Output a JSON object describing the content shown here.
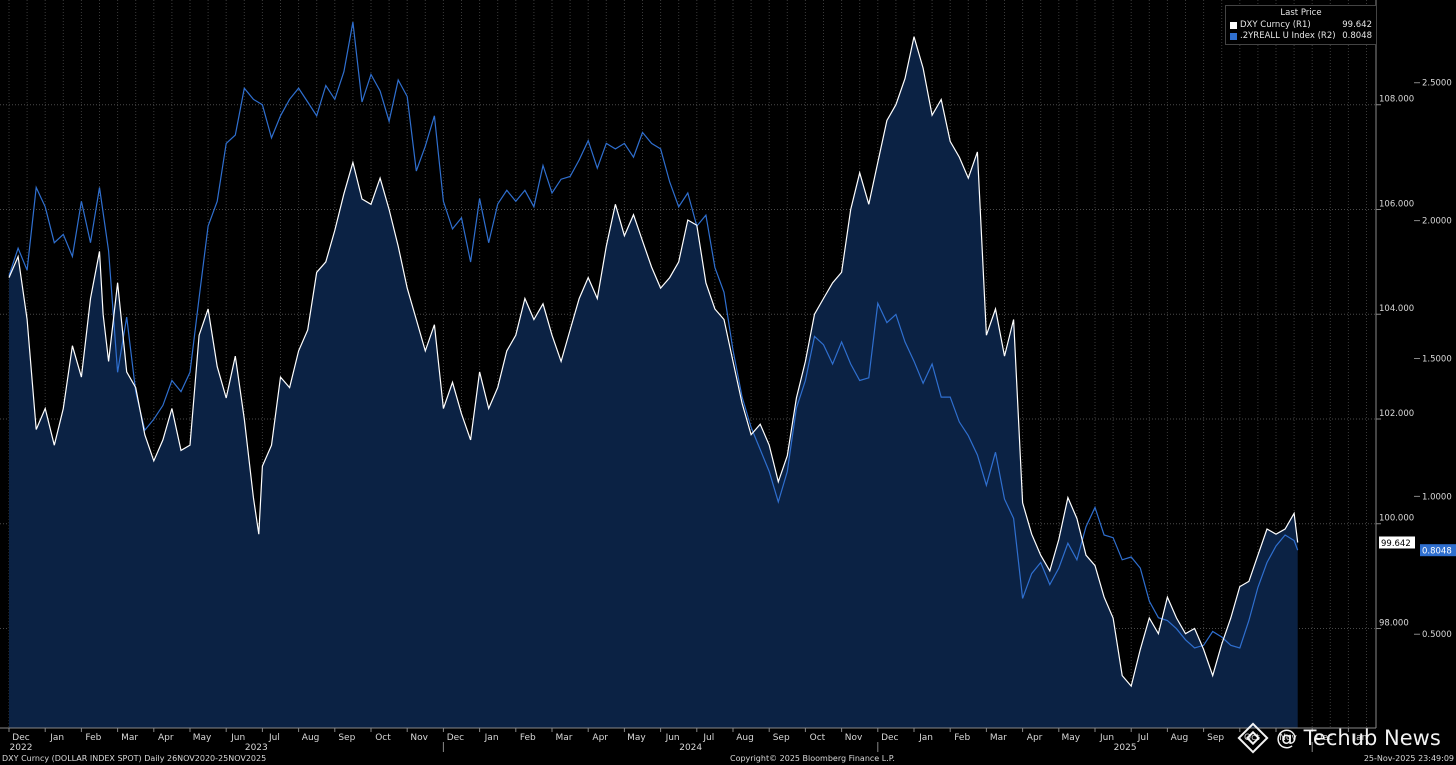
{
  "legend": {
    "title": "Last Price",
    "items": [
      {
        "name": "DXY Curncy  (R1)",
        "value": "99.642",
        "color": "#ffffff"
      },
      {
        "name": ".2YREALL U Index  (R2)",
        "value": "0.8048",
        "color": "#2f6fcf"
      }
    ]
  },
  "footer": {
    "left": "DXY Curncy (DOLLAR INDEX SPOT) Daily 26NOV2020-25NOV2025",
    "center": "Copyright© 2025 Bloomberg Finance L.P.",
    "right": "25-Nov-2025 23:49:09"
  },
  "watermark": "@ Techub News",
  "colors": {
    "background": "#000000",
    "area_fill": "#0b2244",
    "dxy_line": "#ffffff",
    "real_yield_line": "#2f6fcf",
    "grid": "#3a3a3a"
  },
  "chart_data": {
    "type": "line",
    "x_labels": [
      "Dec",
      "Jan",
      "Feb",
      "Mar",
      "Apr",
      "May",
      "Jun",
      "Jul",
      "Aug",
      "Sep",
      "Oct",
      "Nov",
      "Dec",
      "Jan",
      "Feb",
      "Mar",
      "Apr",
      "May",
      "Jun",
      "Jul",
      "Aug",
      "Sep",
      "Oct",
      "Nov",
      "Dec",
      "Jan",
      "Feb",
      "Mar",
      "Apr",
      "May",
      "Jun",
      "Jul",
      "Aug",
      "Sep",
      "Oct",
      "Nov",
      "Dec",
      "Jan"
    ],
    "year_labels": [
      {
        "label": "2022",
        "month_index": 0
      },
      {
        "label": "2023",
        "month_index": 6.5
      },
      {
        "label": "2024",
        "month_index": 18.5
      },
      {
        "label": "2025",
        "month_index": 30.5
      }
    ],
    "axis_r1": {
      "ticks": [
        "98.000",
        "100.000",
        "102.000",
        "104.000",
        "106.000",
        "108.000"
      ],
      "range": [
        96.1,
        110.0
      ]
    },
    "axis_r2": {
      "ticks": [
        "0.5000",
        "1.0000",
        "1.5000",
        "2.0000",
        "2.5000"
      ],
      "range": [
        0.16,
        2.8
      ]
    },
    "last_price_labels": {
      "r1": "99.642",
      "r2": "0.8048"
    },
    "series": [
      {
        "name": "DXY Curncy",
        "axis": "R1",
        "style": "area",
        "points": [
          [
            0.0,
            104.7
          ],
          [
            0.25,
            105.1
          ],
          [
            0.5,
            103.9
          ],
          [
            0.75,
            101.8
          ],
          [
            1.0,
            102.2
          ],
          [
            1.25,
            101.5
          ],
          [
            1.5,
            102.2
          ],
          [
            1.75,
            103.4
          ],
          [
            2.0,
            102.8
          ],
          [
            2.25,
            104.3
          ],
          [
            2.5,
            105.2
          ],
          [
            2.6,
            104.0
          ],
          [
            2.75,
            103.1
          ],
          [
            3.0,
            104.6
          ],
          [
            3.25,
            102.9
          ],
          [
            3.5,
            102.6
          ],
          [
            3.75,
            101.7
          ],
          [
            4.0,
            101.2
          ],
          [
            4.25,
            101.6
          ],
          [
            4.5,
            102.2
          ],
          [
            4.75,
            101.4
          ],
          [
            5.0,
            101.5
          ],
          [
            5.25,
            103.6
          ],
          [
            5.5,
            104.1
          ],
          [
            5.75,
            103.0
          ],
          [
            6.0,
            102.4
          ],
          [
            6.25,
            103.2
          ],
          [
            6.5,
            102.0
          ],
          [
            6.75,
            100.5
          ],
          [
            6.9,
            99.8
          ],
          [
            7.0,
            101.1
          ],
          [
            7.25,
            101.5
          ],
          [
            7.5,
            102.8
          ],
          [
            7.75,
            102.6
          ],
          [
            8.0,
            103.3
          ],
          [
            8.25,
            103.7
          ],
          [
            8.5,
            104.8
          ],
          [
            8.75,
            105.0
          ],
          [
            9.0,
            105.6
          ],
          [
            9.25,
            106.3
          ],
          [
            9.5,
            106.9
          ],
          [
            9.75,
            106.2
          ],
          [
            10.0,
            106.1
          ],
          [
            10.25,
            106.6
          ],
          [
            10.5,
            106.0
          ],
          [
            10.75,
            105.3
          ],
          [
            11.0,
            104.5
          ],
          [
            11.25,
            103.9
          ],
          [
            11.5,
            103.3
          ],
          [
            11.75,
            103.8
          ],
          [
            12.0,
            102.2
          ],
          [
            12.25,
            102.7
          ],
          [
            12.5,
            102.1
          ],
          [
            12.75,
            101.6
          ],
          [
            13.0,
            102.9
          ],
          [
            13.25,
            102.2
          ],
          [
            13.5,
            102.6
          ],
          [
            13.75,
            103.3
          ],
          [
            14.0,
            103.6
          ],
          [
            14.25,
            104.3
          ],
          [
            14.5,
            103.9
          ],
          [
            14.75,
            104.2
          ],
          [
            15.0,
            103.6
          ],
          [
            15.25,
            103.1
          ],
          [
            15.5,
            103.7
          ],
          [
            15.75,
            104.3
          ],
          [
            16.0,
            104.7
          ],
          [
            16.25,
            104.3
          ],
          [
            16.5,
            105.3
          ],
          [
            16.75,
            106.1
          ],
          [
            17.0,
            105.5
          ],
          [
            17.25,
            105.9
          ],
          [
            17.5,
            105.4
          ],
          [
            17.75,
            104.9
          ],
          [
            18.0,
            104.5
          ],
          [
            18.25,
            104.7
          ],
          [
            18.5,
            105.0
          ],
          [
            18.75,
            105.8
          ],
          [
            19.0,
            105.7
          ],
          [
            19.25,
            104.6
          ],
          [
            19.5,
            104.1
          ],
          [
            19.75,
            103.9
          ],
          [
            20.0,
            103.1
          ],
          [
            20.25,
            102.3
          ],
          [
            20.5,
            101.7
          ],
          [
            20.75,
            101.9
          ],
          [
            21.0,
            101.5
          ],
          [
            21.25,
            100.8
          ],
          [
            21.5,
            101.3
          ],
          [
            21.75,
            102.4
          ],
          [
            22.0,
            103.1
          ],
          [
            22.25,
            104.0
          ],
          [
            22.5,
            104.3
          ],
          [
            22.75,
            104.6
          ],
          [
            23.0,
            104.8
          ],
          [
            23.25,
            106.0
          ],
          [
            23.5,
            106.7
          ],
          [
            23.75,
            106.1
          ],
          [
            24.0,
            106.9
          ],
          [
            24.25,
            107.7
          ],
          [
            24.5,
            108.0
          ],
          [
            24.75,
            108.5
          ],
          [
            25.0,
            109.3
          ],
          [
            25.25,
            108.7
          ],
          [
            25.5,
            107.8
          ],
          [
            25.75,
            108.1
          ],
          [
            26.0,
            107.3
          ],
          [
            26.25,
            107.0
          ],
          [
            26.5,
            106.6
          ],
          [
            26.75,
            107.1
          ],
          [
            27.0,
            103.6
          ],
          [
            27.25,
            104.1
          ],
          [
            27.5,
            103.2
          ],
          [
            27.75,
            103.9
          ],
          [
            28.0,
            100.4
          ],
          [
            28.25,
            99.8
          ],
          [
            28.5,
            99.4
          ],
          [
            28.75,
            99.1
          ],
          [
            29.0,
            99.7
          ],
          [
            29.25,
            100.5
          ],
          [
            29.5,
            100.1
          ],
          [
            29.75,
            99.4
          ],
          [
            30.0,
            99.2
          ],
          [
            30.25,
            98.6
          ],
          [
            30.5,
            98.2
          ],
          [
            30.75,
            97.1
          ],
          [
            31.0,
            96.9
          ],
          [
            31.25,
            97.6
          ],
          [
            31.5,
            98.2
          ],
          [
            31.75,
            97.9
          ],
          [
            32.0,
            98.6
          ],
          [
            32.25,
            98.2
          ],
          [
            32.5,
            97.9
          ],
          [
            32.75,
            98.0
          ],
          [
            33.0,
            97.6
          ],
          [
            33.25,
            97.1
          ],
          [
            33.5,
            97.7
          ],
          [
            33.75,
            98.2
          ],
          [
            34.0,
            98.8
          ],
          [
            34.25,
            98.9
          ],
          [
            34.5,
            99.4
          ],
          [
            34.75,
            99.9
          ],
          [
            35.0,
            99.8
          ],
          [
            35.25,
            99.9
          ],
          [
            35.5,
            100.2
          ],
          [
            35.6,
            99.642
          ]
        ]
      },
      {
        "name": ".2YREALL U Index",
        "axis": "R2",
        "style": "line",
        "points": [
          [
            0.0,
            1.8
          ],
          [
            0.25,
            1.9
          ],
          [
            0.5,
            1.82
          ],
          [
            0.75,
            2.12
          ],
          [
            1.0,
            2.05
          ],
          [
            1.25,
            1.92
          ],
          [
            1.5,
            1.95
          ],
          [
            1.75,
            1.87
          ],
          [
            2.0,
            2.07
          ],
          [
            2.25,
            1.92
          ],
          [
            2.5,
            2.12
          ],
          [
            2.75,
            1.89
          ],
          [
            3.0,
            1.45
          ],
          [
            3.25,
            1.65
          ],
          [
            3.5,
            1.38
          ],
          [
            3.75,
            1.24
          ],
          [
            4.0,
            1.28
          ],
          [
            4.25,
            1.33
          ],
          [
            4.5,
            1.42
          ],
          [
            4.75,
            1.38
          ],
          [
            5.0,
            1.45
          ],
          [
            5.25,
            1.72
          ],
          [
            5.5,
            1.98
          ],
          [
            5.75,
            2.07
          ],
          [
            6.0,
            2.28
          ],
          [
            6.25,
            2.31
          ],
          [
            6.5,
            2.48
          ],
          [
            6.75,
            2.44
          ],
          [
            7.0,
            2.42
          ],
          [
            7.25,
            2.3
          ],
          [
            7.5,
            2.38
          ],
          [
            7.75,
            2.44
          ],
          [
            8.0,
            2.48
          ],
          [
            8.25,
            2.43
          ],
          [
            8.5,
            2.38
          ],
          [
            8.75,
            2.49
          ],
          [
            9.0,
            2.44
          ],
          [
            9.25,
            2.54
          ],
          [
            9.5,
            2.72
          ],
          [
            9.75,
            2.43
          ],
          [
            10.0,
            2.53
          ],
          [
            10.25,
            2.47
          ],
          [
            10.5,
            2.36
          ],
          [
            10.75,
            2.51
          ],
          [
            11.0,
            2.45
          ],
          [
            11.25,
            2.18
          ],
          [
            11.5,
            2.27
          ],
          [
            11.75,
            2.38
          ],
          [
            12.0,
            2.07
          ],
          [
            12.25,
            1.97
          ],
          [
            12.5,
            2.01
          ],
          [
            12.75,
            1.85
          ],
          [
            13.0,
            2.08
          ],
          [
            13.25,
            1.92
          ],
          [
            13.5,
            2.06
          ],
          [
            13.75,
            2.11
          ],
          [
            14.0,
            2.07
          ],
          [
            14.25,
            2.11
          ],
          [
            14.5,
            2.05
          ],
          [
            14.75,
            2.2
          ],
          [
            15.0,
            2.1
          ],
          [
            15.25,
            2.15
          ],
          [
            15.5,
            2.16
          ],
          [
            15.75,
            2.22
          ],
          [
            16.0,
            2.29
          ],
          [
            16.25,
            2.19
          ],
          [
            16.5,
            2.28
          ],
          [
            16.75,
            2.26
          ],
          [
            17.0,
            2.28
          ],
          [
            17.25,
            2.23
          ],
          [
            17.5,
            2.32
          ],
          [
            17.75,
            2.28
          ],
          [
            18.0,
            2.26
          ],
          [
            18.25,
            2.14
          ],
          [
            18.5,
            2.05
          ],
          [
            18.75,
            2.1
          ],
          [
            19.0,
            1.98
          ],
          [
            19.25,
            2.02
          ],
          [
            19.5,
            1.83
          ],
          [
            19.75,
            1.74
          ],
          [
            20.0,
            1.53
          ],
          [
            20.25,
            1.36
          ],
          [
            20.5,
            1.25
          ],
          [
            20.75,
            1.17
          ],
          [
            21.0,
            1.09
          ],
          [
            21.25,
            0.98
          ],
          [
            21.5,
            1.09
          ],
          [
            21.75,
            1.32
          ],
          [
            22.0,
            1.42
          ],
          [
            22.25,
            1.58
          ],
          [
            22.5,
            1.55
          ],
          [
            22.75,
            1.48
          ],
          [
            23.0,
            1.56
          ],
          [
            23.25,
            1.48
          ],
          [
            23.5,
            1.42
          ],
          [
            23.75,
            1.43
          ],
          [
            24.0,
            1.7
          ],
          [
            24.25,
            1.63
          ],
          [
            24.5,
            1.66
          ],
          [
            24.75,
            1.56
          ],
          [
            25.0,
            1.49
          ],
          [
            25.25,
            1.41
          ],
          [
            25.5,
            1.48
          ],
          [
            25.75,
            1.36
          ],
          [
            26.0,
            1.36
          ],
          [
            26.25,
            1.27
          ],
          [
            26.5,
            1.22
          ],
          [
            26.75,
            1.15
          ],
          [
            27.0,
            1.04
          ],
          [
            27.25,
            1.16
          ],
          [
            27.5,
            0.99
          ],
          [
            27.75,
            0.92
          ],
          [
            28.0,
            0.63
          ],
          [
            28.25,
            0.72
          ],
          [
            28.5,
            0.76
          ],
          [
            28.75,
            0.68
          ],
          [
            29.0,
            0.74
          ],
          [
            29.25,
            0.83
          ],
          [
            29.5,
            0.77
          ],
          [
            29.75,
            0.89
          ],
          [
            30.0,
            0.96
          ],
          [
            30.25,
            0.86
          ],
          [
            30.5,
            0.85
          ],
          [
            30.75,
            0.77
          ],
          [
            31.0,
            0.78
          ],
          [
            31.25,
            0.74
          ],
          [
            31.5,
            0.62
          ],
          [
            31.75,
            0.56
          ],
          [
            32.0,
            0.55
          ],
          [
            32.25,
            0.52
          ],
          [
            32.5,
            0.48
          ],
          [
            32.75,
            0.45
          ],
          [
            33.0,
            0.46
          ],
          [
            33.25,
            0.51
          ],
          [
            33.5,
            0.49
          ],
          [
            33.75,
            0.46
          ],
          [
            34.0,
            0.45
          ],
          [
            34.25,
            0.55
          ],
          [
            34.5,
            0.67
          ],
          [
            34.75,
            0.76
          ],
          [
            35.0,
            0.82
          ],
          [
            35.25,
            0.86
          ],
          [
            35.5,
            0.84
          ],
          [
            35.6,
            0.8048
          ]
        ]
      }
    ],
    "grid": true,
    "legend_position": "top-right"
  }
}
